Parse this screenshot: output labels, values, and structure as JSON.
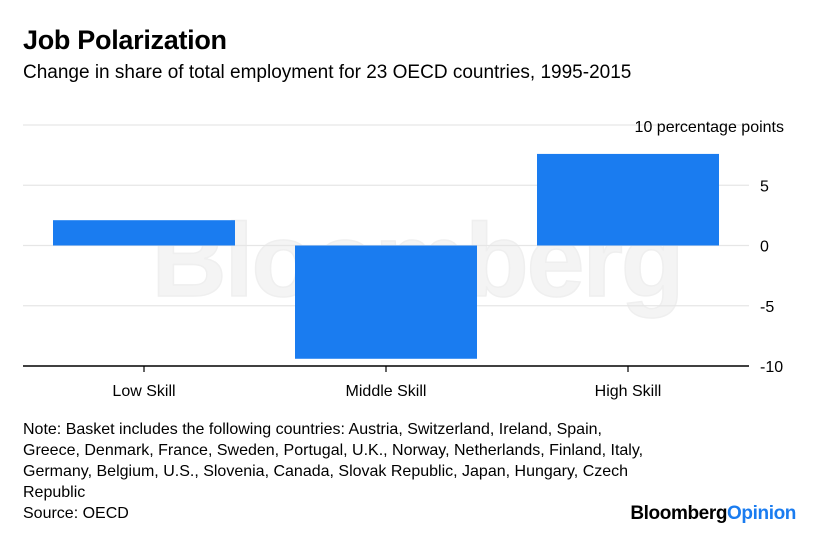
{
  "header": {
    "title": "Job Polarization",
    "subtitle": "Change in share of total employment for 23 OECD countries, 1995-2015"
  },
  "chart_data": {
    "type": "bar",
    "categories": [
      "Low Skill",
      "Middle Skill",
      "High Skill"
    ],
    "values": [
      2.1,
      -9.4,
      7.6
    ],
    "ylim": [
      -10,
      10
    ],
    "yticks": [
      10,
      5,
      0,
      -5,
      -10
    ],
    "ytick_labels": [
      "10 percentage points",
      "5",
      "0",
      "-5",
      "-10"
    ],
    "grid": true,
    "bar_color": "#1a7cf0",
    "gridline_color": "#e6e6e6"
  },
  "watermark": "Bloomberg",
  "footer": {
    "note": "Note: Basket includes the following countries: Austria, Switzerland, Ireland, Spain, Greece, Denmark, France, Sweden, Portugal, U.K., Norway, Netherlands, Finland, Italy, Germany, Belgium, U.S., Slovenia, Canada, Slovak Republic, Japan, Hungary, Czech Republic",
    "source": "Source: OECD",
    "logo_brand": "Bloomberg",
    "logo_opinion": "Opinion"
  }
}
